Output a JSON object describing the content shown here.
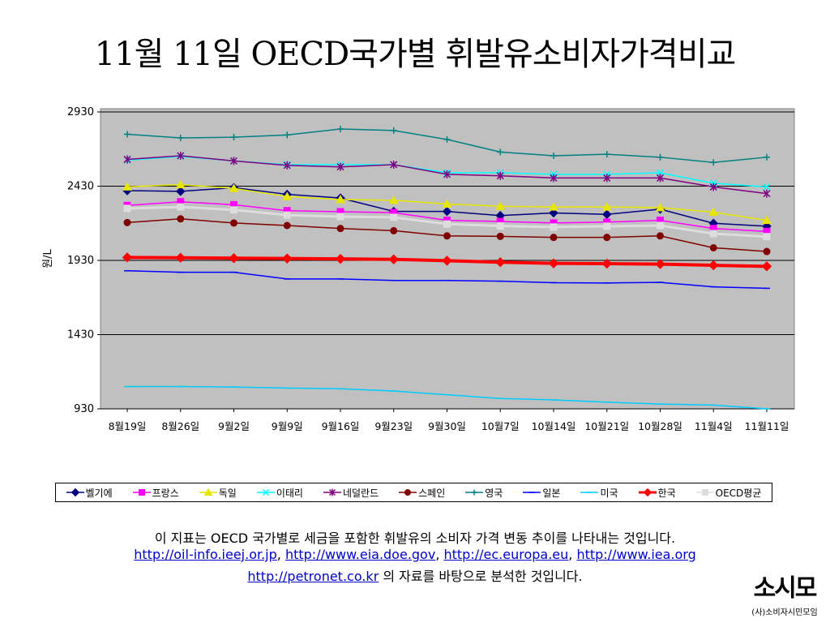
{
  "title": "11월 11일 OECD국가별 휘발유소비자가격비교",
  "chart_data": {
    "type": "line",
    "title": "",
    "xlabel": "",
    "ylabel": "원/L",
    "ylim": [
      930,
      2930
    ],
    "yticks": [
      930,
      1430,
      1930,
      2430,
      2930
    ],
    "grid": true,
    "legend_position": "bottom",
    "plot_background": "#c0c0c0",
    "categories": [
      "8월19일",
      "8월26일",
      "9월2일",
      "9월9일",
      "9월16일",
      "9월23일",
      "9월30일",
      "10월7일",
      "10월14일",
      "10월21일",
      "10월28일",
      "11월4일",
      "11월11일"
    ],
    "series": [
      {
        "name": "벨기에",
        "color": "#000080",
        "marker": "diamond",
        "values": [
          2400,
          2395,
          2420,
          2375,
          2350,
          2260,
          2260,
          2232,
          2250,
          2240,
          2275,
          2180,
          2160
        ]
      },
      {
        "name": "프랑스",
        "color": "#ff00ff",
        "marker": "square",
        "values": [
          2300,
          2325,
          2305,
          2265,
          2258,
          2252,
          2200,
          2192,
          2182,
          2188,
          2200,
          2145,
          2125
        ]
      },
      {
        "name": "독일",
        "color": "#e6e600",
        "marker": "triangle",
        "values": [
          2425,
          2440,
          2415,
          2360,
          2340,
          2335,
          2310,
          2295,
          2290,
          2290,
          2285,
          2255,
          2200
        ]
      },
      {
        "name": "이태리",
        "color": "#00ffff",
        "marker": "x",
        "values": [
          2605,
          2630,
          2600,
          2575,
          2575,
          2575,
          2520,
          2520,
          2510,
          2510,
          2520,
          2450,
          2425
        ]
      },
      {
        "name": "네덜란드",
        "color": "#800080",
        "marker": "star",
        "values": [
          2610,
          2635,
          2600,
          2570,
          2560,
          2575,
          2510,
          2500,
          2485,
          2485,
          2485,
          2425,
          2380
        ]
      },
      {
        "name": "스페인",
        "color": "#800000",
        "marker": "circle",
        "values": [
          2185,
          2210,
          2182,
          2165,
          2145,
          2130,
          2095,
          2092,
          2085,
          2085,
          2095,
          2015,
          1990
        ]
      },
      {
        "name": "영국",
        "color": "#008080",
        "marker": "plus",
        "values": [
          2780,
          2755,
          2760,
          2775,
          2815,
          2805,
          2745,
          2660,
          2635,
          2645,
          2625,
          2590,
          2625
        ]
      },
      {
        "name": "일본",
        "color": "#0000ff",
        "marker": "dash",
        "values": [
          1860,
          1850,
          1850,
          1805,
          1805,
          1795,
          1795,
          1790,
          1780,
          1778,
          1782,
          1752,
          1742
        ]
      },
      {
        "name": "미국",
        "color": "#00ccff",
        "marker": "dash",
        "values": [
          1080,
          1080,
          1077,
          1070,
          1065,
          1050,
          1025,
          1000,
          990,
          975,
          962,
          955,
          930
        ]
      },
      {
        "name": "한국",
        "color": "#ff0000",
        "marker": "diamond",
        "values": [
          1950,
          1948,
          1945,
          1943,
          1940,
          1937,
          1928,
          1918,
          1910,
          1908,
          1905,
          1897,
          1890
        ]
      },
      {
        "name": "OECD평균",
        "color": "#dddddd",
        "marker": "square",
        "values": [
          2280,
          2290,
          2270,
          2235,
          2225,
          2220,
          2175,
          2162,
          2155,
          2160,
          2165,
          2110,
          2090
        ]
      }
    ]
  },
  "description": {
    "line1": "이 지표는 OECD 국가별로 세금을 포함한 휘발유의 소비자 가격 변동 추이를 나타내는 것입니다.",
    "link1": "http://oil-info.ieej.or.jp",
    "link2": "http://www.eia.doe.gov",
    "link3": "http://ec.europa.eu",
    "link4": "http://www.iea.org",
    "link5": "http://petronet.co.kr",
    "separator": ", ",
    "line3_suffix": " 의 자료를 바탕으로 분석한 것입니다."
  },
  "logo": {
    "mark": "소시모",
    "text": "(사)소비자시민모임"
  }
}
